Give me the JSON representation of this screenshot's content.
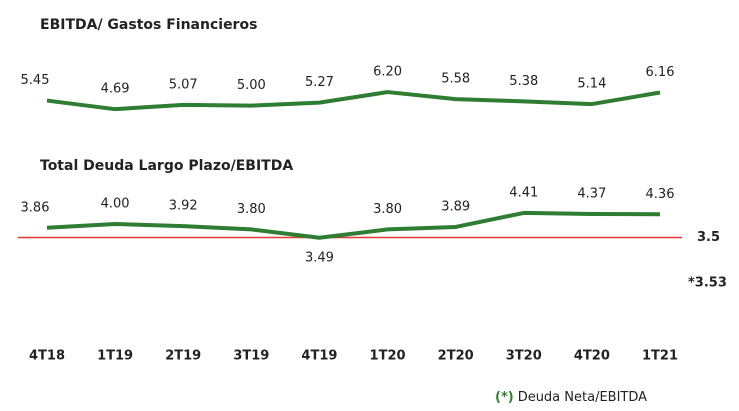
{
  "chart_data": [
    {
      "type": "line",
      "title": "EBITDA/ Gastos Financieros",
      "series": [
        {
          "name": "EBITDA/ Gastos Financieros",
          "color": "#2e7d32",
          "values": [
            5.45,
            4.69,
            5.07,
            5.0,
            5.27,
            6.2,
            5.58,
            5.38,
            5.14,
            6.16
          ],
          "value_labels": [
            "5.45",
            "4.69",
            "5.07",
            "5.00",
            "5.27",
            "6.20",
            "5.58",
            "5.38",
            "5.14",
            "6.16"
          ]
        }
      ],
      "ylim": [
        4,
        7
      ]
    },
    {
      "type": "line",
      "title": "Total Deuda Largo Plazo/EBITDA",
      "categories": [
        "4T18",
        "1T19",
        "2T19",
        "3T19",
        "4T19",
        "1T20",
        "2T20",
        "3T20",
        "4T20",
        "1T21"
      ],
      "series": [
        {
          "name": "Total Deuda Largo Plazo/EBITDA",
          "color": "#2e7d32",
          "values": [
            3.86,
            4.0,
            3.92,
            3.8,
            3.49,
            3.8,
            3.89,
            4.41,
            4.37,
            4.36
          ],
          "value_labels": [
            "3.86",
            "4.00",
            "3.92",
            "3.80",
            "3.49",
            "3.80",
            "3.89",
            "4.41",
            "4.37",
            "4.36"
          ]
        }
      ],
      "ylim": [
        3,
        5
      ],
      "reference_line": {
        "value": 3.5,
        "label": "3.5",
        "color": "#e53935"
      },
      "annotation": {
        "value": 3.53,
        "label": "*3.53",
        "color": "#2e7d32"
      },
      "footnote": {
        "marker": "(*)",
        "text": "Deuda Neta/EBITDA"
      }
    }
  ]
}
